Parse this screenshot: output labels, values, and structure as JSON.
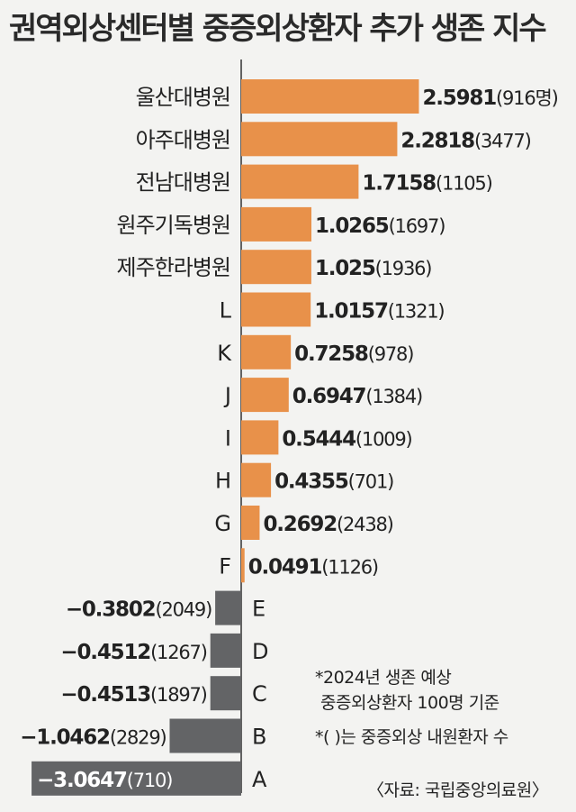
{
  "title": "권역외상센터별 중증외상환자 추가 생존 지수",
  "chart_data": {
    "type": "bar",
    "orientation": "horizontal",
    "title": "권역외상센터별 중증외상환자 추가 생존 지수",
    "categories": [
      "울산대병원",
      "아주대병원",
      "전남대병원",
      "원주기독병원",
      "제주한라병원",
      "L",
      "K",
      "J",
      "I",
      "H",
      "G",
      "F",
      "E",
      "D",
      "C",
      "B",
      "A"
    ],
    "values": [
      2.5981,
      2.2818,
      1.7158,
      1.0265,
      1.025,
      1.0157,
      0.7258,
      0.6947,
      0.5444,
      0.4355,
      0.2692,
      0.0491,
      -0.3802,
      -0.4512,
      -0.4513,
      -1.0462,
      -3.0647
    ],
    "value_labels": [
      "2.5981",
      "2.2818",
      "1.7158",
      "1.0265",
      "1.025",
      "1.0157",
      "0.7258",
      "0.6947",
      "0.5444",
      "0.4355",
      "0.2692",
      "0.0491",
      "−0.3802",
      "−0.4512",
      "−0.4513",
      "−1.0462",
      "−3.0647"
    ],
    "counts": [
      "(916명)",
      "(3477)",
      "(1105)",
      "(1697)",
      "(1936)",
      "(1321)",
      "(978)",
      "(1384)",
      "(1009)",
      "(701)",
      "(2438)",
      "(1126)",
      "(2049)",
      "(1267)",
      "(1897)",
      "(2829)",
      "(710)"
    ],
    "xlim": [
      -3.0647,
      2.5981
    ],
    "positive_color": "#e8914a",
    "negative_color": "#636466"
  },
  "notes": {
    "line1": "*2024년 생존 예상",
    "line2": "중증외상환자 100명 기준",
    "line3": "*(   )는 중증외상 내원환자 수"
  },
  "source": "〈자료: 국립중앙의료원〉"
}
